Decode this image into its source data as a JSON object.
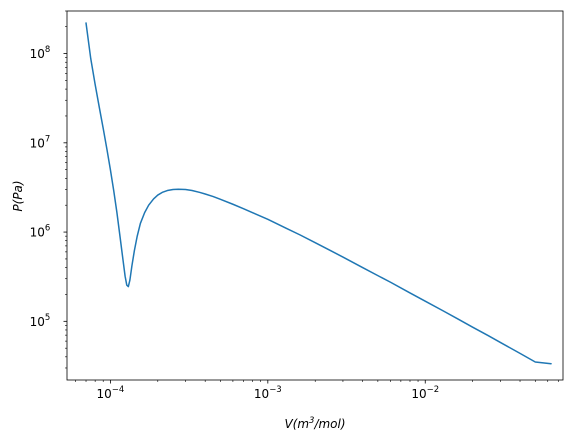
{
  "chart_data": {
    "type": "line",
    "title": "",
    "xlabel": "V(m^3/mol)",
    "ylabel": "P(Pa)",
    "xlabel_parts": {
      "pre": "V(",
      "base": "m",
      "sup": "3",
      "post": "/mol)"
    },
    "ylabel_parts": {
      "text": "P(Pa)"
    },
    "xscale": "log",
    "yscale": "log",
    "xlim": [
      5.3e-05,
      0.075
    ],
    "ylim": [
      22000,
      300000000
    ],
    "grid": false,
    "legend": "none",
    "line_color": "#1f77b4",
    "x_ticks": [
      {
        "value": 0.0001,
        "base": "10",
        "exp": "−4"
      },
      {
        "value": 0.001,
        "base": "10",
        "exp": "−3"
      },
      {
        "value": 0.01,
        "base": "10",
        "exp": "−2"
      }
    ],
    "y_ticks": [
      {
        "value": 100000,
        "base": "10",
        "exp": "5"
      },
      {
        "value": 1000000,
        "base": "10",
        "exp": "6"
      },
      {
        "value": 10000000,
        "base": "10",
        "exp": "7"
      },
      {
        "value": 100000000,
        "base": "10",
        "exp": "8"
      }
    ],
    "series": [
      {
        "x": [
          7e-05,
          7.5e-05,
          8e-05,
          8.5e-05,
          9e-05,
          9.5e-05,
          0.0001,
          0.000105,
          0.00011,
          0.000115,
          0.00012,
          0.000124,
          0.000127,
          0.00013,
          0.000133,
          0.000137,
          0.000142,
          0.000148,
          0.000155,
          0.000165,
          0.000175,
          0.000188,
          0.0002,
          0.000215,
          0.00023,
          0.00025,
          0.00027,
          0.0003,
          0.00033,
          0.00037,
          0.0004,
          0.00045,
          0.0005,
          0.0006,
          0.0007,
          0.0008,
          0.001,
          0.0013,
          0.0016,
          0.002,
          0.0025,
          0.003,
          0.004,
          0.005,
          0.006,
          0.008,
          0.01,
          0.013,
          0.016,
          0.02,
          0.025,
          0.03,
          0.04,
          0.05,
          0.063
        ],
        "y": [
          220000000,
          88000000,
          45000000,
          25000000,
          14500000,
          8500000,
          5000000,
          2900000,
          1650000,
          900000,
          500000,
          320000,
          255000,
          245000,
          290000,
          420000,
          620000,
          900000,
          1250000,
          1650000,
          2000000,
          2350000,
          2600000,
          2800000,
          2920000,
          3000000,
          3020000,
          3000000,
          2920000,
          2780000,
          2670000,
          2500000,
          2330000,
          2050000,
          1830000,
          1650000,
          1390000,
          1110000,
          930000,
          760000,
          620000,
          525000,
          400000,
          325000,
          275000,
          208000,
          168000,
          131000,
          107000,
          86000,
          69500,
          58000,
          43700,
          35000,
          33500
        ]
      }
    ]
  }
}
